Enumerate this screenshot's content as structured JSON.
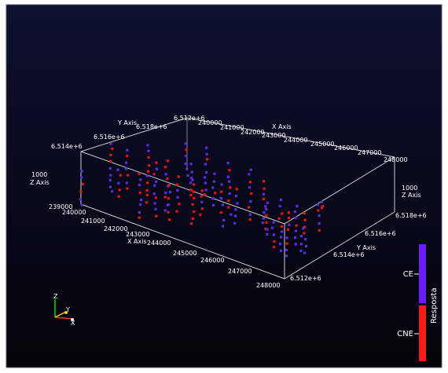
{
  "chart_data": {
    "type": "scatter",
    "view": "3d",
    "axes": {
      "x": {
        "label": "X Axis",
        "ticks_front": [
          "239000",
          "240000",
          "241000",
          "242000",
          "243000",
          "244000",
          "245000",
          "246000",
          "247000",
          "248000"
        ],
        "ticks_back": [
          "240000",
          "241000",
          "242000",
          "243000",
          "244000",
          "245000",
          "246000",
          "247000",
          "248000"
        ]
      },
      "y": {
        "label": "Y Axis",
        "ticks_right": [
          "6.512e+6",
          "6.514e+6",
          "6.516e+6",
          "6.518e+6"
        ],
        "ticks_back": [
          "6.512e+6",
          "6.514e+6",
          "6.516e+6",
          "6.518e+6"
        ]
      },
      "z": {
        "label": "Z Axis",
        "ticks_left": [
          "1000"
        ],
        "ticks_right": [
          "1000"
        ]
      }
    },
    "legend": {
      "title": "Resposta",
      "placement": "bottom-right",
      "items": [
        {
          "label": "CE",
          "color": "#6a1bff"
        },
        {
          "label": "CNE",
          "color": "#ff1a1a"
        }
      ]
    },
    "series": [
      {
        "name": "CE",
        "color": "#5a2be0"
      },
      {
        "name": "CNE",
        "color": "#e31414"
      }
    ],
    "orientation_labels": [
      "Z",
      "Y",
      "X"
    ]
  }
}
